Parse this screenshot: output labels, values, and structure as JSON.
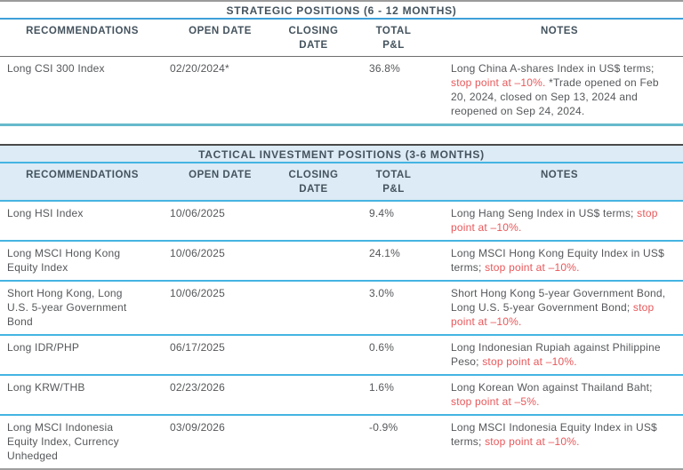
{
  "colors": {
    "heading_text": "#44535e",
    "body_text": "#55575a",
    "stop_point_red": "#e8575a",
    "row_divider_cyan": "#45b4e2",
    "strategic_title_underline_blue": "#3e9fd8",
    "strategic_bottom_teal": "#66b9cc",
    "tactical_header_background": "#dcebf5",
    "outer_rule_gray": "#9b9b9b"
  },
  "tables": [
    {
      "title": "STRATEGIC POSITIONS (6 - 12 MONTHS)",
      "columns": [
        "RECOMMENDATIONS",
        "OPEN DATE",
        "CLOSING\nDATE",
        "TOTAL\nP&L",
        "NOTES"
      ],
      "rows": [
        {
          "recommendation": "Long CSI 300 Index",
          "open_date": "02/20/2024*",
          "closing_date": "",
          "total_pl": "36.8%",
          "notes": [
            {
              "text": "Long China A-shares Index in US$ terms; ",
              "red": false
            },
            {
              "text": "stop point at –10%.",
              "red": true
            },
            {
              "text": " *Trade opened on Feb 20, 2024, closed on Sep 13, 2024 and reopened on Sep 24, 2024.",
              "red": false
            }
          ]
        }
      ]
    },
    {
      "title": "TACTICAL INVESTMENT POSITIONS (3-6 MONTHS)",
      "columns": [
        "RECOMMENDATIONS",
        "OPEN DATE",
        "CLOSING\nDATE",
        "TOTAL\nP&L",
        "NOTES"
      ],
      "rows": [
        {
          "recommendation": "Long HSI Index",
          "open_date": "10/06/2025",
          "closing_date": "",
          "total_pl": "9.4%",
          "notes": [
            {
              "text": "Long Hang Seng Index in US$ terms; ",
              "red": false
            },
            {
              "text": "stop point at –10%.",
              "red": true
            }
          ]
        },
        {
          "recommendation": "Long MSCI Hong Kong Equity Index",
          "open_date": "10/06/2025",
          "closing_date": "",
          "total_pl": "24.1%",
          "notes": [
            {
              "text": "Long MSCI Hong Kong Equity Index in US$ terms; ",
              "red": false
            },
            {
              "text": "stop point at –10%.",
              "red": true
            }
          ]
        },
        {
          "recommendation": "Short Hong Kong, Long U.S. 5-year Government Bond",
          "open_date": "10/06/2025",
          "closing_date": "",
          "total_pl": "3.0%",
          "notes": [
            {
              "text": "Short Hong Kong 5-year Government Bond, Long U.S. 5-year Government Bond; ",
              "red": false
            },
            {
              "text": "stop point at –10%.",
              "red": true
            }
          ]
        },
        {
          "recommendation": "Long IDR/PHP",
          "open_date": "06/17/2025",
          "closing_date": "",
          "total_pl": "0.6%",
          "notes": [
            {
              "text": "Long Indonesian Rupiah against Philippine Peso; ",
              "red": false
            },
            {
              "text": "stop point at –10%.",
              "red": true
            }
          ]
        },
        {
          "recommendation": "Long KRW/THB",
          "open_date": "02/23/2026",
          "closing_date": "",
          "total_pl": "1.6%",
          "notes": [
            {
              "text": "Long Korean Won against Thailand Baht; ",
              "red": false
            },
            {
              "text": "stop point at –5%.",
              "red": true
            }
          ]
        },
        {
          "recommendation": "Long MSCI Indonesia Equity Index, Currency Unhedged",
          "open_date": "03/09/2026",
          "closing_date": "",
          "total_pl": "-0.9%",
          "notes": [
            {
              "text": "Long MSCI Indonesia Equity Index in US$ terms; ",
              "red": false
            },
            {
              "text": "stop point at –10%.",
              "red": true
            }
          ]
        }
      ]
    }
  ]
}
